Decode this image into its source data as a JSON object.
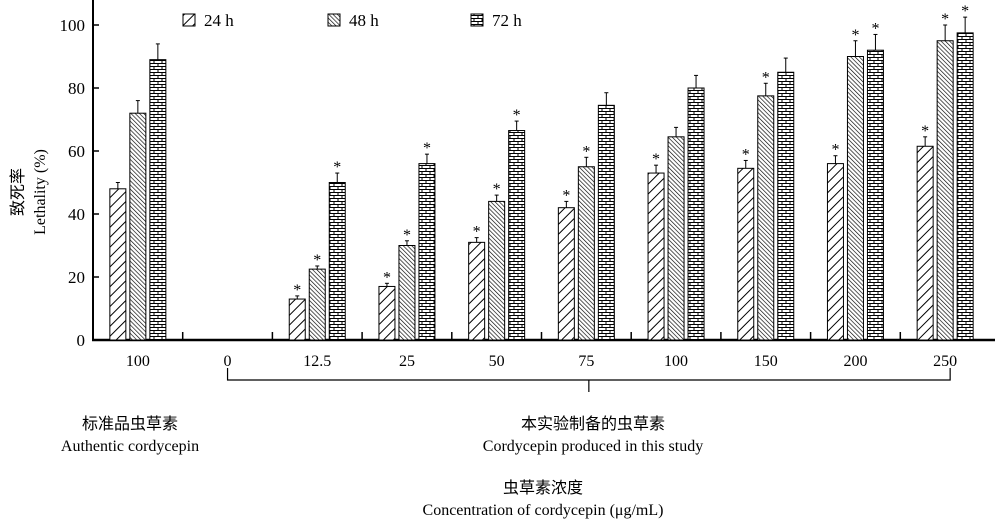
{
  "chart_data": {
    "type": "bar",
    "ylabel_cn": "致死率",
    "ylabel": "Lethality (%)",
    "ylim": [
      0,
      100
    ],
    "yticks": [
      0,
      20,
      40,
      60,
      80,
      100
    ],
    "categories": [
      "100",
      "0",
      "12.5",
      "25",
      "50",
      "75",
      "100",
      "150",
      "200",
      "250"
    ],
    "series": [
      {
        "name": "24 h",
        "pattern": "sparse-diagonal",
        "values": [
          48,
          0,
          13,
          17,
          31,
          42,
          53,
          54.5,
          56,
          61.5
        ],
        "errors": [
          2,
          0,
          1,
          1,
          1.5,
          2,
          2.5,
          2.5,
          2.5,
          3
        ],
        "significant": [
          false,
          false,
          true,
          true,
          true,
          true,
          true,
          true,
          true,
          true
        ]
      },
      {
        "name": "48 h",
        "pattern": "dense-diagonal",
        "values": [
          72,
          0,
          22.5,
          30,
          44,
          55,
          64.5,
          77.5,
          90,
          95
        ],
        "errors": [
          4,
          0,
          1,
          1.5,
          2,
          3,
          3,
          4,
          5,
          5
        ],
        "significant": [
          false,
          false,
          true,
          true,
          true,
          true,
          false,
          true,
          true,
          true
        ]
      },
      {
        "name": "72 h",
        "pattern": "brick",
        "values": [
          89,
          0,
          50,
          56,
          66.5,
          74.5,
          80,
          85,
          92,
          97.5
        ],
        "errors": [
          5,
          0,
          3,
          3,
          3,
          4,
          4,
          4.5,
          5,
          5
        ],
        "significant": [
          false,
          false,
          true,
          true,
          true,
          false,
          false,
          false,
          true,
          true
        ]
      }
    ],
    "significance_marker": "*",
    "legend_position": "top",
    "groups": {
      "authentic": {
        "cn": "标准品虫草素",
        "en": "Authentic cordycepin"
      },
      "produced": {
        "cn": "本实验制备的虫草素",
        "en": "Cordycepin produced in this study"
      }
    },
    "xlabel_cn": "虫草素浓度",
    "xlabel": "Concentration of cordycepin (μg/mL)"
  }
}
